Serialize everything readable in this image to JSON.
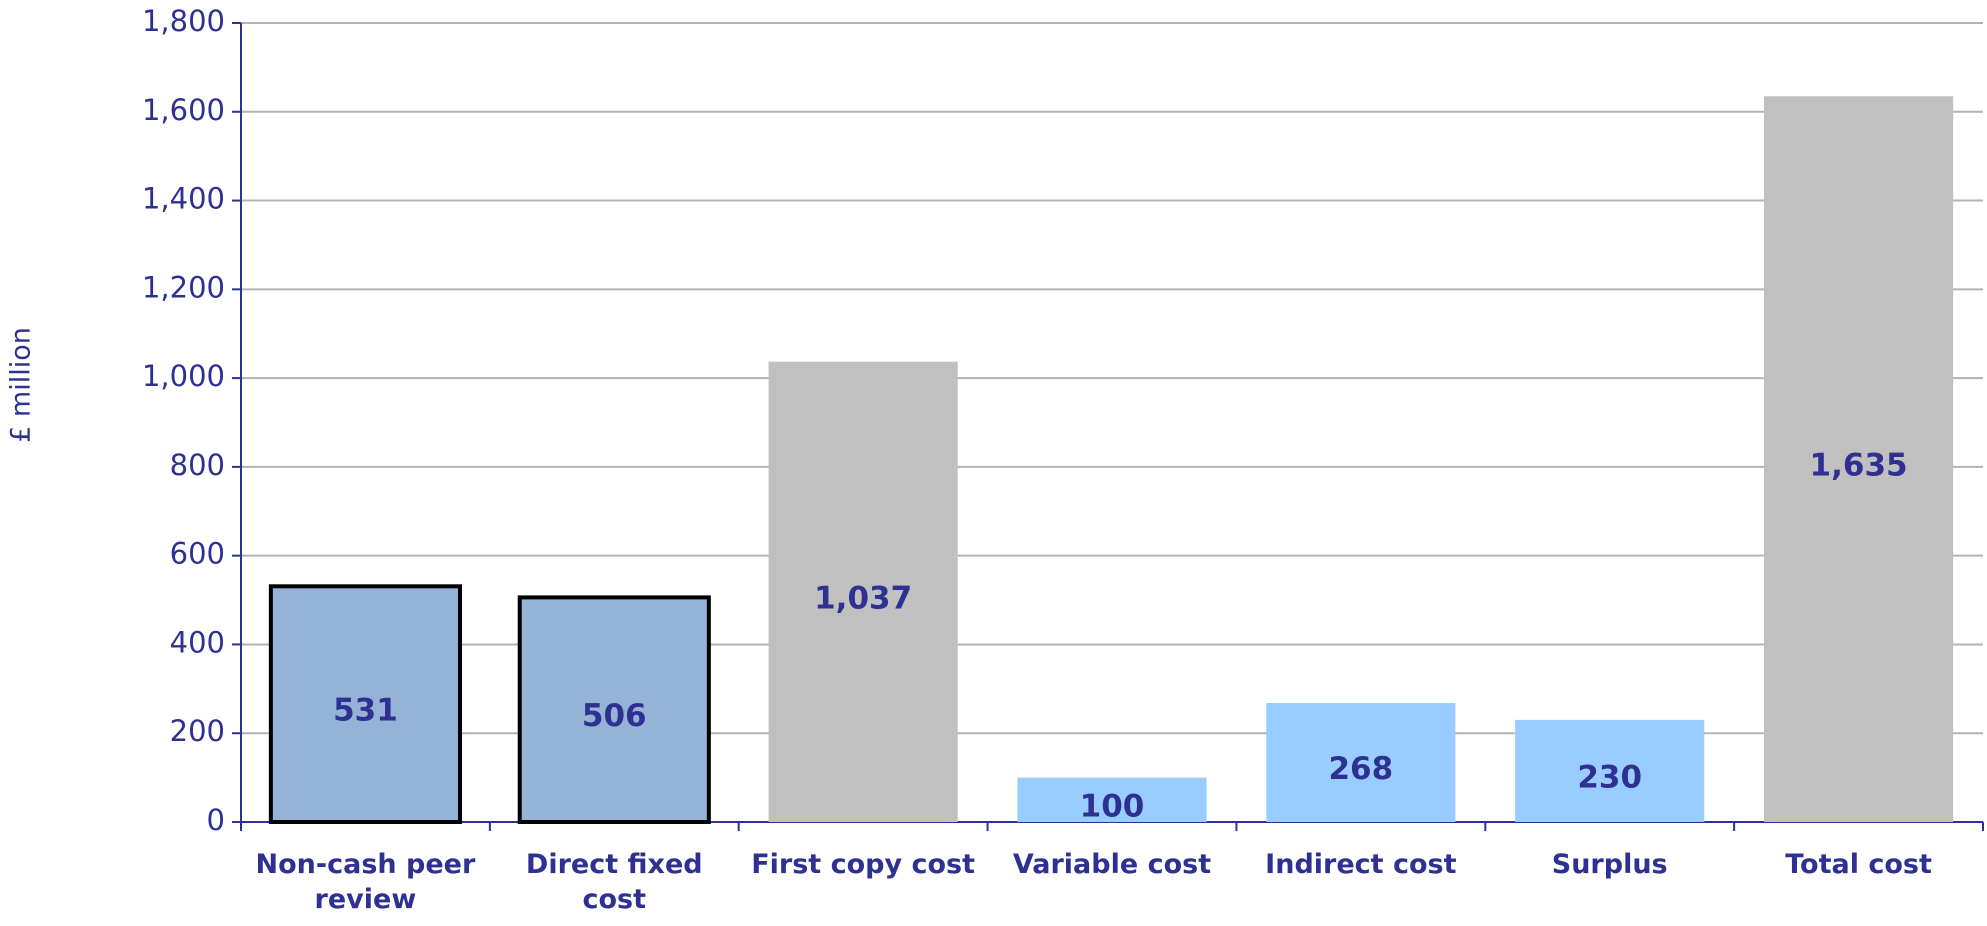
{
  "chart_data": {
    "type": "bar",
    "y_label": "£ million",
    "categories": [
      "Non-cash peer review",
      "Direct fixed cost",
      "First copy cost",
      "Variable cost",
      "Indirect cost",
      "Surplus",
      "Total cost"
    ],
    "values": [
      531,
      506,
      1037,
      100,
      268,
      230,
      1635
    ],
    "value_labels": [
      "531",
      "506",
      "1,037",
      "100",
      "268",
      "230",
      "1,635"
    ],
    "colors": [
      "#95b3d7",
      "#95b3d7",
      "#c0c0c0",
      "#99ccff",
      "#99ccff",
      "#99ccff",
      "#c0c0c0"
    ],
    "edge_colors": [
      "#000000",
      "#000000",
      null,
      null,
      null,
      null,
      null
    ],
    "ylim": [
      0,
      1800
    ],
    "yticks": [
      0,
      200,
      400,
      600,
      800,
      {
        "value": 1000,
        "label": "1,000"
      },
      {
        "value": 1200,
        "label": "1,200"
      },
      {
        "value": 1400,
        "label": "1,400"
      },
      {
        "value": 1600,
        "label": "1,600"
      },
      {
        "value": 1800,
        "label": "1,800"
      }
    ],
    "grid": true
  }
}
